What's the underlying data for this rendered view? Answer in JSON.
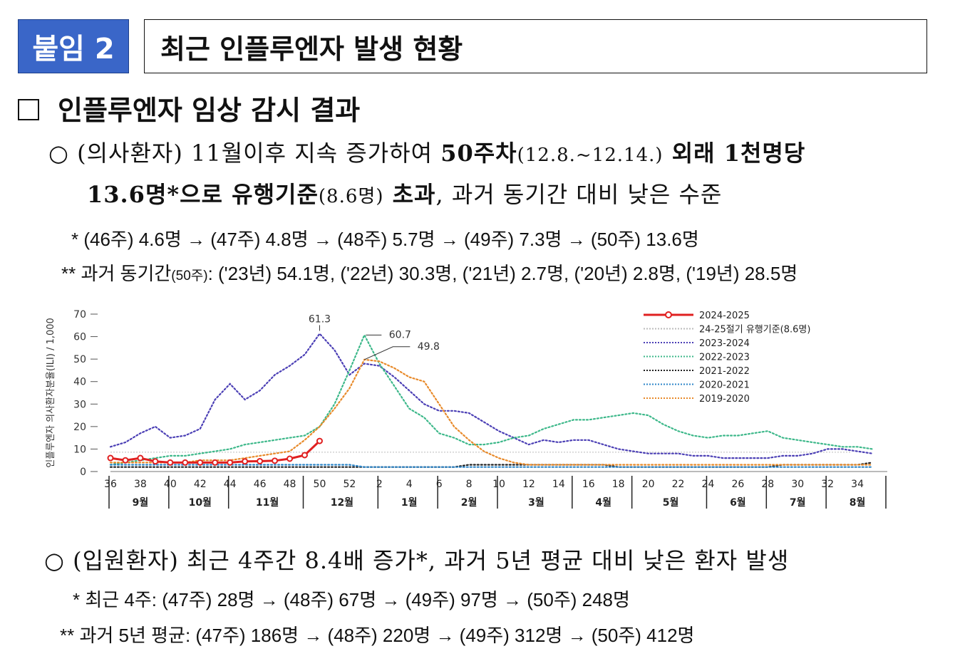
{
  "header": {
    "tag": "붙임 2",
    "title": "최근 인플루엔자 발생 현황"
  },
  "section": {
    "heading": "인플루엔자 임상 감시 결과"
  },
  "clinical": {
    "bullet": "○",
    "p1a": "(의사환자) 11월이후 지속 증가하여 ",
    "p1b": "50주차",
    "p1c": "(12.8.~12.14.)",
    "p1d": " 외래 1천명당",
    "p2a": "13.6명*으로 유행기준",
    "p2b": "(8.6명)",
    "p2c": " 초과",
    "p2d": ", 과거 동기간 대비 낮은 수준",
    "note1": "* (46주) 4.6명 → (47주) 4.8명 → (48주) 5.7명 → (49주) 7.3명 → (50주) 13.6명",
    "note2a": "** 과거 동기간",
    "note2b": "(50주)",
    "note2c": ": ('23년) 54.1명, ('22년) 30.3명, ('21년) 2.7명, ('20년) 2.8명, ('19년) 28.5명"
  },
  "hospital": {
    "bullet": "○",
    "p1": "(입원환자) 최근 4주간 8.4배 증가*, 과거 5년 평균 대비 낮은 환자 발생",
    "note1": "* 최근 4주: (47주) 28명 → (48주) 67명 → (49주) 97명 → (50주) 248명",
    "note2": "** 과거 5년 평균: (47주) 186명 → (48주) 220명 → (49주) 312명 → (50주) 412명"
  },
  "chart_data": {
    "type": "line",
    "ylabel": "인플루엔자 의사환자분율(ILI) / 1,000",
    "ylim": [
      0,
      70
    ],
    "yticks": [
      0,
      10,
      20,
      30,
      40,
      50,
      60,
      70
    ],
    "week_ticks": [
      "36",
      "38",
      "40",
      "42",
      "44",
      "46",
      "48",
      "50",
      "52",
      "2",
      "4",
      "6",
      "8",
      "10",
      "12",
      "14",
      "16",
      "18",
      "20",
      "22",
      "24",
      "26",
      "28",
      "30",
      "32",
      "34"
    ],
    "month_labels": [
      "9월",
      "10월",
      "11월",
      "12월",
      "1월",
      "2월",
      "3월",
      "4월",
      "5월",
      "6월",
      "7월",
      "8월"
    ],
    "threshold": {
      "name": "24-25절기 유행기준(8.6명)",
      "value": 8.6
    },
    "annotations": [
      {
        "text": "61.3",
        "series": "2023-2024",
        "week_index": 14
      },
      {
        "text": "60.7",
        "series": "2022-2023",
        "week_index": 17
      },
      {
        "text": "49.8",
        "series": "2019-2020",
        "week_index": 17
      },
      {
        "text": "13.6",
        "series": "2024-2025",
        "week_index": 15
      }
    ],
    "series": [
      {
        "name": "2024-2025",
        "color": "#e02020",
        "style": "solid",
        "values": [
          6.0,
          5.0,
          6.0,
          4.5,
          4.0,
          4.0,
          4.0,
          4.0,
          4.0,
          4.5,
          4.6,
          4.8,
          5.7,
          7.3,
          13.6
        ]
      },
      {
        "name": "2023-2024",
        "color": "#4b3fb5",
        "style": "dot",
        "values": [
          11,
          13,
          17,
          20,
          15,
          16,
          19,
          32,
          39,
          32,
          36,
          43,
          47,
          52,
          61.3,
          54,
          43,
          48,
          47,
          42,
          36,
          30,
          27,
          27,
          26,
          22,
          18,
          15,
          12,
          14,
          13,
          14,
          14,
          12,
          10,
          9,
          8,
          8,
          8,
          7,
          7,
          6,
          6,
          6,
          6,
          7,
          7,
          8,
          10,
          10,
          9,
          8
        ]
      },
      {
        "name": "2022-2023",
        "color": "#3db88a",
        "style": "dot",
        "values": [
          3,
          4,
          5,
          6,
          7,
          7,
          8,
          9,
          10,
          12,
          13,
          14,
          15,
          16,
          20,
          30,
          45,
          60.7,
          48,
          38,
          28,
          24,
          17,
          15,
          12,
          12,
          13,
          15,
          16,
          19,
          21,
          23,
          23,
          24,
          25,
          26,
          25,
          21,
          18,
          16,
          15,
          16,
          16,
          17,
          18,
          15,
          14,
          13,
          12,
          11,
          11,
          10
        ]
      },
      {
        "name": "2021-2022",
        "color": "#222222",
        "style": "dot",
        "values": [
          2,
          2,
          2,
          2,
          2,
          2,
          2,
          2,
          2,
          2,
          2,
          2,
          2,
          2,
          2,
          2,
          2,
          2,
          2,
          2,
          2,
          2,
          2,
          2,
          3,
          3,
          3,
          3,
          3,
          3,
          3,
          3,
          3,
          3,
          2,
          2,
          2,
          2,
          2,
          2,
          2,
          2,
          2,
          2,
          2,
          3,
          3,
          3,
          3,
          3,
          3,
          4
        ]
      },
      {
        "name": "2020-2021",
        "color": "#2e86c8",
        "style": "dot",
        "values": [
          3,
          3,
          3,
          3,
          3,
          3,
          3,
          3,
          3,
          3,
          3,
          3,
          3,
          3,
          3,
          3,
          3,
          2,
          2,
          2,
          2,
          2,
          2,
          2,
          2,
          2,
          2,
          2,
          2,
          2,
          2,
          2,
          2,
          2,
          2,
          2,
          2,
          2,
          2,
          2,
          2,
          2,
          2,
          2,
          2,
          2,
          2,
          2,
          2,
          2,
          2,
          2
        ]
      },
      {
        "name": "2019-2020",
        "color": "#e88a2a",
        "style": "dot",
        "values": [
          4,
          4,
          4,
          4,
          4,
          4,
          5,
          5,
          5,
          6,
          7,
          8,
          9,
          14,
          20,
          28,
          37,
          49.8,
          49,
          46,
          42,
          40,
          30,
          20,
          14,
          9,
          6,
          4,
          3,
          3,
          3,
          3,
          3,
          3,
          3,
          3,
          3,
          3,
          3,
          3,
          3,
          3,
          3,
          3,
          3,
          3,
          3,
          3,
          3,
          3,
          3,
          3
        ]
      }
    ]
  }
}
